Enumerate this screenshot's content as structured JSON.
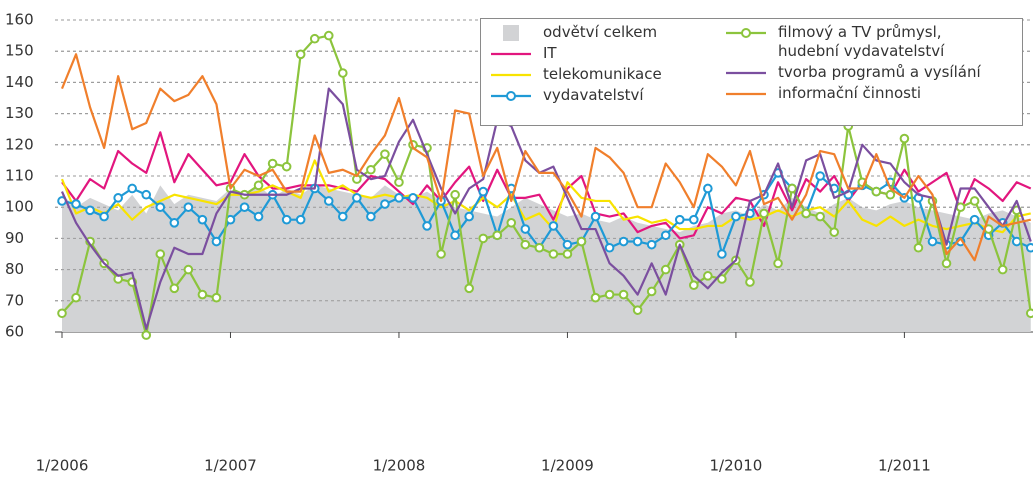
{
  "chart_data": {
    "type": "line",
    "categories": [
      "1/2006",
      null,
      null,
      null,
      null,
      null,
      null,
      null,
      null,
      null,
      null,
      null,
      "1/2007",
      null,
      null,
      null,
      null,
      null,
      null,
      null,
      null,
      null,
      null,
      null,
      "1/2008",
      null,
      null,
      null,
      null,
      null,
      null,
      null,
      null,
      null,
      null,
      null,
      "1/2009",
      null,
      null,
      null,
      null,
      null,
      null,
      null,
      null,
      null,
      null,
      null,
      "1/2010",
      null,
      null,
      null,
      null,
      null,
      null,
      null,
      null,
      null,
      null,
      null,
      "1/2011",
      null,
      null,
      null,
      null,
      null,
      null,
      null,
      null,
      null
    ],
    "ylim": [
      60,
      160
    ],
    "yticks": [
      60,
      70,
      80,
      90,
      100,
      110,
      120,
      130,
      140,
      150,
      160
    ],
    "grid": true,
    "legend": "upper right",
    "series": [
      {
        "name": "odvětví celkem",
        "color": "#d2d3d5",
        "fill": true,
        "values": [
          104,
          100,
          103,
          101,
          99,
          104,
          98,
          107,
          101,
          104,
          103,
          102,
          106,
          104,
          107,
          103,
          106,
          104,
          107,
          106,
          105,
          104,
          103,
          107,
          104,
          103,
          105,
          102,
          100,
          99,
          98,
          97,
          100,
          103,
          101,
          99,
          97,
          98,
          96,
          95,
          97,
          95,
          94,
          93,
          92,
          94,
          95,
          98,
          99,
          97,
          101,
          99,
          103,
          100,
          98,
          101,
          103,
          100,
          99,
          101,
          102,
          100,
          99,
          98,
          97,
          96,
          98,
          99,
          97,
          95
        ]
      },
      {
        "name": "IT",
        "color": "#e2167e",
        "values": [
          108,
          102,
          109,
          106,
          118,
          114,
          111,
          124,
          108,
          117,
          112,
          107,
          108,
          117,
          110,
          106,
          106,
          107,
          107,
          107,
          106,
          105,
          110,
          109,
          105,
          101,
          107,
          102,
          108,
          113,
          102,
          112,
          103,
          103,
          104,
          96,
          106,
          110,
          98,
          97,
          98,
          92,
          94,
          95,
          90,
          91,
          100,
          98,
          103,
          102,
          94,
          108,
          99,
          109,
          105,
          110,
          102,
          108,
          105,
          104,
          112,
          105,
          108,
          111,
          99,
          109,
          106,
          102,
          108,
          106
        ]
      },
      {
        "name": "telekomunikace",
        "color": "#f8e300",
        "values": [
          109,
          98,
          100,
          98,
          101,
          96,
          100,
          102,
          104,
          103,
          102,
          101,
          104,
          104,
          105,
          107,
          105,
          103,
          115,
          105,
          107,
          104,
          103,
          104,
          103,
          104,
          103,
          100,
          102,
          99,
          103,
          100,
          104,
          96,
          98,
          93,
          108,
          103,
          102,
          102,
          96,
          97,
          95,
          96,
          93,
          93,
          94,
          94,
          97,
          96,
          97,
          99,
          97,
          99,
          100,
          97,
          102,
          96,
          94,
          97,
          94,
          96,
          94,
          93,
          94,
          95,
          93,
          92,
          97,
          98
        ]
      },
      {
        "name": "vydavatelství",
        "color": "#1f9ad6",
        "marker": true,
        "values": [
          102,
          101,
          99,
          97,
          103,
          106,
          104,
          100,
          95,
          100,
          96,
          89,
          96,
          100,
          97,
          104,
          96,
          96,
          106,
          102,
          97,
          103,
          97,
          101,
          103,
          103,
          94,
          102,
          91,
          97,
          105,
          91,
          106,
          93,
          87,
          94,
          88,
          89,
          97,
          87,
          89,
          89,
          88,
          91,
          96,
          96,
          106,
          85,
          97,
          98,
          104,
          111,
          106,
          98,
          110,
          106,
          104,
          107,
          105,
          108,
          103,
          103,
          89,
          88,
          89,
          96,
          91,
          95,
          89,
          87
        ]
      },
      {
        "name": "filmový a TV průmysl, hudební vydavatelství",
        "color": "#8cc43d",
        "marker": true,
        "values": [
          66,
          71,
          89,
          82,
          77,
          76,
          59,
          85,
          74,
          80,
          72,
          71,
          106,
          104,
          107,
          114,
          113,
          149,
          154,
          155,
          143,
          109,
          112,
          117,
          108,
          120,
          119,
          85,
          104,
          74,
          90,
          91,
          95,
          88,
          87,
          85,
          85,
          89,
          71,
          72,
          72,
          67,
          73,
          80,
          88,
          75,
          78,
          77,
          83,
          76,
          98,
          82,
          106,
          98,
          97,
          92,
          126,
          108,
          105,
          104,
          122,
          87,
          102,
          82,
          100,
          102,
          93,
          80,
          99,
          66
        ]
      },
      {
        "name": "tvorba programů a vysílání",
        "color": "#7b4f9f",
        "values": [
          105,
          95,
          88,
          82,
          78,
          79,
          61,
          76,
          87,
          85,
          85,
          98,
          105,
          104,
          104,
          104,
          104,
          106,
          106,
          138,
          133,
          112,
          109,
          110,
          121,
          128,
          117,
          106,
          98,
          106,
          109,
          128,
          126,
          115,
          111,
          113,
          103,
          93,
          93,
          82,
          78,
          72,
          82,
          72,
          88,
          78,
          74,
          79,
          83,
          102,
          104,
          114,
          100,
          115,
          117,
          103,
          105,
          120,
          115,
          114,
          108,
          104,
          103,
          88,
          106,
          106,
          100,
          94,
          102,
          89
        ]
      },
      {
        "name": "informační činnosti",
        "color": "#f07f2c",
        "values": [
          138,
          149,
          132,
          119,
          142,
          125,
          127,
          138,
          134,
          136,
          142,
          133,
          106,
          112,
          110,
          112,
          105,
          105,
          123,
          111,
          112,
          110,
          117,
          123,
          135,
          119,
          116,
          102,
          131,
          130,
          110,
          119,
          102,
          118,
          111,
          111,
          105,
          97,
          119,
          116,
          111,
          100,
          100,
          114,
          108,
          100,
          117,
          113,
          107,
          118,
          101,
          103,
          96,
          104,
          118,
          117,
          106,
          106,
          117,
          106,
          103,
          110,
          104,
          85,
          90,
          83,
          97,
          94,
          95,
          96
        ]
      }
    ]
  }
}
